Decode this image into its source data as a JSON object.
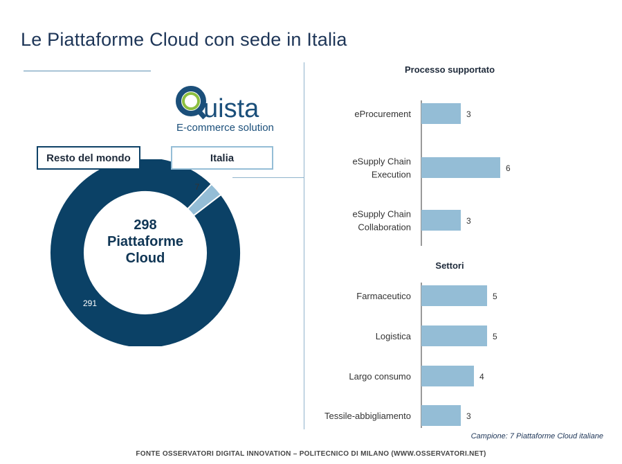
{
  "title": "Le Piattaforme Cloud con sede in Italia",
  "logo": {
    "word": "uista",
    "letter": "Q",
    "subtitle": "E-commerce solution"
  },
  "donut": {
    "legend_resto": "Resto del mondo",
    "legend_italia": "Italia",
    "center_number": "298",
    "center_line1": "Piattaforme",
    "center_line2": "Cloud"
  },
  "colors": {
    "dark": "#0b4166",
    "light": "#94bdd6",
    "title": "#1d3557"
  },
  "footnote": "Campione: 7 Piattaforme Cloud italiane",
  "source": "FONTE OSSERVATORI DIGITAL INNOVATION – POLITECNICO DI MILANO (WWW.OSSERVATORI.NET)",
  "chart_data": [
    {
      "type": "pie",
      "categories": [
        "Resto del mondo",
        "Italia"
      ],
      "values": [
        291,
        7
      ],
      "total": 298
    },
    {
      "type": "bar",
      "orientation": "horizontal",
      "title": "Processo supportato",
      "categories": [
        "eProcurement",
        "eSupply Chain Execution",
        "eSupply Chain Collaboration"
      ],
      "category_lines": [
        [
          "eProcurement"
        ],
        [
          "eSupply Chain",
          "Execution"
        ],
        [
          "eSupply Chain",
          "Collaboration"
        ]
      ],
      "values": [
        3,
        6,
        3
      ]
    },
    {
      "type": "bar",
      "orientation": "horizontal",
      "title": "Settori",
      "categories": [
        "Farmaceutico",
        "Logistica",
        "Largo consumo",
        "Tessile-abbigliamento"
      ],
      "values": [
        5,
        5,
        4,
        3
      ]
    }
  ]
}
